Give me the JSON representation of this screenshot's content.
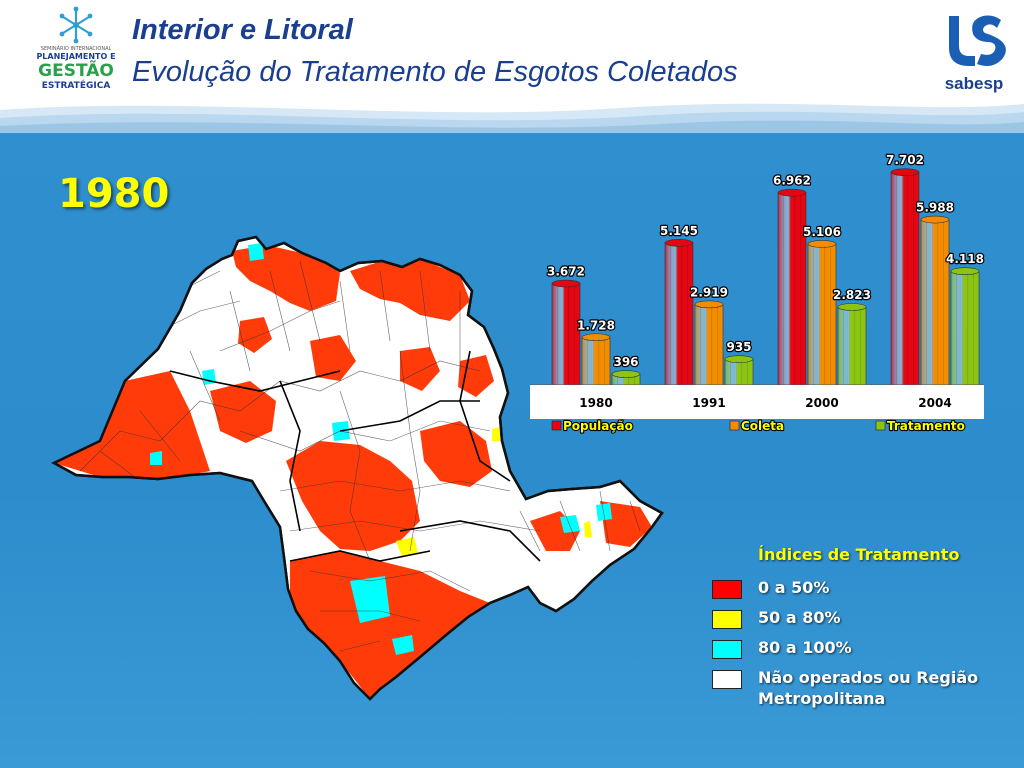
{
  "header": {
    "title": "Interior e Litoral",
    "subtitle": "Evolução do Tratamento de Esgotos Coletados",
    "logo_left": {
      "line1": "SEMINÁRIO INTERNACIONAL",
      "line2": "PLANEJAMENTO E",
      "line3": "GESTÃO",
      "line4": "ESTRATÉGICA",
      "icon": "snowflake-icon"
    },
    "logo_right": {
      "brand": "sabesp",
      "icon": "sabesp-logo-icon"
    }
  },
  "year_label": "1980",
  "colors": {
    "populacao": "#e30613",
    "coleta": "#f28c00",
    "tratamento": "#8cc414",
    "map_red": "#ff3b0a",
    "map_yellow": "#ffff00",
    "map_cyan": "#00ffff",
    "map_white": "#ffffff"
  },
  "chart_data": {
    "type": "bar",
    "categories": [
      "1980",
      "1991",
      "2000",
      "2004"
    ],
    "series": [
      {
        "name": "População",
        "values": [
          3672,
          5145,
          6962,
          7702
        ],
        "labels": [
          "3.672",
          "5.145",
          "6.962",
          "7.702"
        ],
        "color": "#e30613"
      },
      {
        "name": "Coleta",
        "values": [
          1728,
          2919,
          5106,
          5988
        ],
        "labels": [
          "1.728",
          "2.919",
          "5.106",
          "5.988"
        ],
        "color": "#f28c00"
      },
      {
        "name": "Tratamento",
        "values": [
          396,
          935,
          2823,
          4118
        ],
        "labels": [
          "396",
          "935",
          "2.823",
          "4.118"
        ],
        "color": "#8cc414"
      }
    ],
    "ylim": [
      0,
      8000
    ],
    "grid": false,
    "legend_position": "bottom",
    "style": "3d-cylinder"
  },
  "legend": {
    "title": "Índices de Tratamento",
    "items": [
      {
        "label": "0 a 50%",
        "color": "#ff0000"
      },
      {
        "label": "50 a 80%",
        "color": "#ffff00"
      },
      {
        "label": "80 a 100%",
        "color": "#00ffff"
      },
      {
        "label": "Não operados ou Região Metropolitana",
        "color": "#ffffff"
      }
    ]
  }
}
